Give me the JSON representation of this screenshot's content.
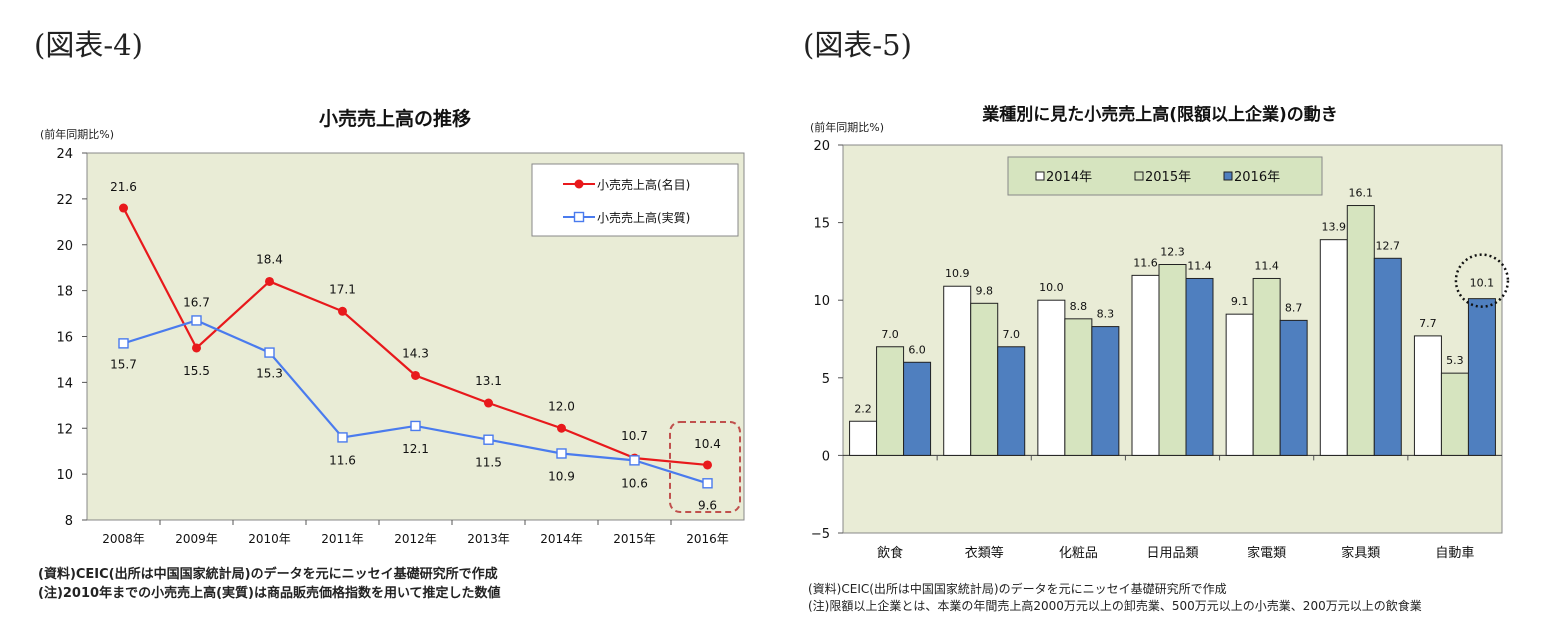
{
  "figures": [
    {
      "label": "(図表-4)",
      "source_note": "(資料)CEIC(出所は中国国家統計局)のデータを元にニッセイ基礎研究所で作成",
      "remark_note": "(注)2010年までの小売売上高(実質)は商品販売価格指数を用いて推定した数値"
    },
    {
      "label": "(図表-5)",
      "source_note": "(資料)CEIC(出所は中国国家統計局)のデータを元にニッセイ基礎研究所で作成",
      "remark_note": "(注)限額以上企業とは、本業の年間売上高2000万元以上の卸売業、500万元以上の小売業、200万元以上の飲食業"
    }
  ],
  "chart_data": [
    {
      "type": "line",
      "title": "小売売上高の推移",
      "ylabel": "(前年同期比%)",
      "xlabel": "",
      "ylim": [
        8,
        24
      ],
      "yticks": [
        8,
        10,
        12,
        14,
        16,
        18,
        20,
        22,
        24
      ],
      "categories": [
        "2008年",
        "2009年",
        "2010年",
        "2011年",
        "2012年",
        "2013年",
        "2014年",
        "2015年",
        "2016年"
      ],
      "series": [
        {
          "name": "小売売上高(名目)",
          "values": [
            21.6,
            15.5,
            18.4,
            17.1,
            14.3,
            13.1,
            12.0,
            10.7,
            10.4
          ],
          "color": "#e8191c",
          "marker": "filled-circle"
        },
        {
          "name": "小売売上高(実質)",
          "values": [
            15.7,
            16.7,
            15.3,
            11.6,
            12.1,
            11.5,
            10.9,
            10.6,
            9.6
          ],
          "color": "#4a7bee",
          "marker": "open-square"
        }
      ],
      "labels_nominal": [
        "21.6",
        "15.5",
        "18.4",
        "17.1",
        "14.3",
        "13.1",
        "12.0",
        "10.7",
        "10.4"
      ],
      "labels_real": [
        "15.7",
        "16.7",
        "15.3",
        "11.6",
        "12.1",
        "11.5",
        "10.9",
        "10.6",
        "9.6"
      ],
      "legend_position": "top-right",
      "plot_background": "#e9ecd6",
      "highlight": "dashed rounded box around 2016年"
    },
    {
      "type": "bar",
      "title": "業種別に見た小売売上高(限額以上企業)の動き",
      "ylabel": "(前年同期比%)",
      "xlabel": "",
      "ylim": [
        -5,
        20
      ],
      "yticks": [
        -5,
        0,
        5,
        10,
        15,
        20
      ],
      "categories": [
        "飲食",
        "衣類等",
        "化粧品",
        "日用品類",
        "家電類",
        "家具類",
        "自動車"
      ],
      "series": [
        {
          "name": "2014年",
          "values": [
            2.2,
            10.9,
            10.0,
            11.6,
            9.1,
            13.9,
            7.7
          ],
          "color": "#ffffff"
        },
        {
          "name": "2015年",
          "values": [
            7.0,
            9.8,
            8.8,
            12.3,
            11.4,
            16.1,
            5.3
          ],
          "color": "#d6e4bf"
        },
        {
          "name": "2016年",
          "values": [
            6.0,
            7.0,
            8.3,
            11.4,
            8.7,
            12.7,
            10.1
          ],
          "color": "#4f7fbf"
        }
      ],
      "labels": [
        [
          "2.2",
          "10.9",
          "10.0",
          "11.6",
          "9.1",
          "13.9",
          "7.7"
        ],
        [
          "7.0",
          "9.8",
          "8.8",
          "12.3",
          "11.4",
          "16.1",
          "5.3"
        ],
        [
          "6.0",
          "7.0",
          "8.3",
          "11.4",
          "8.7",
          "12.7",
          "10.1"
        ]
      ],
      "legend_position": "top-center",
      "plot_background": "#e9ecd6",
      "highlight": "dotted circle around 自動車 2016年"
    }
  ]
}
